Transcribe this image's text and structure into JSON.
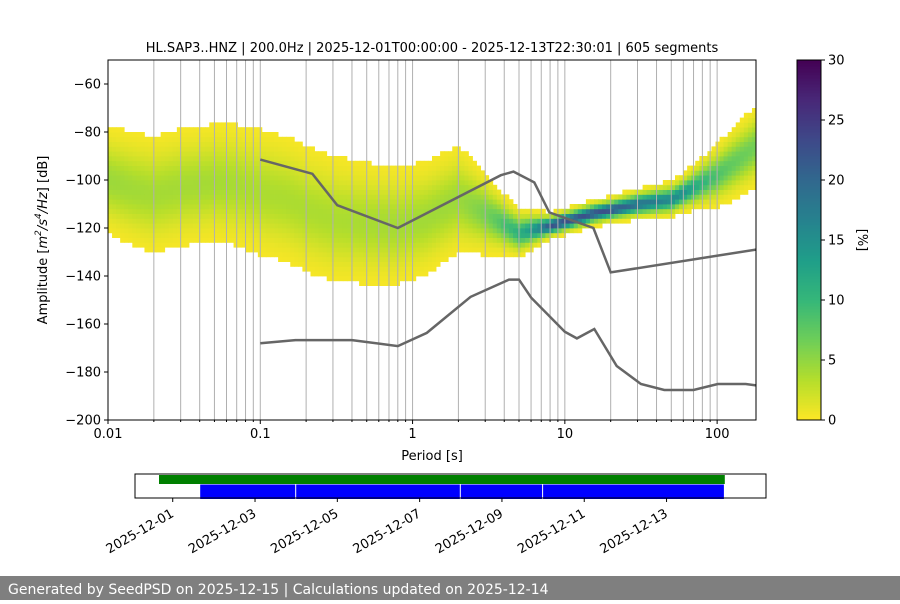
{
  "chart_data": [
    {
      "type": "heatmap",
      "title": "HL.SAP3..HNZ | 200.0Hz | 2025-12-01T00:00:00 - 2025-12-13T22:30:01 | 605 segments",
      "xlabel": "Period [s]",
      "ylabel_parts": [
        "Amplitude [",
        "m",
        "2",
        "/",
        "s",
        "4",
        "/",
        "Hz",
        "] [dB]"
      ],
      "xscale": "log",
      "xlim": [
        0.01,
        180
      ],
      "ylim": [
        -200,
        -50
      ],
      "x_ticks": [
        0.01,
        0.1,
        1,
        10,
        100
      ],
      "x_tick_labels": [
        "0.01",
        "0.1",
        "1",
        "10",
        "100"
      ],
      "y_ticks": [
        -200,
        -180,
        -160,
        -140,
        -120,
        -100,
        -80,
        -60
      ],
      "y_tick_labels": [
        "−200",
        "−180",
        "−160",
        "−140",
        "−120",
        "−100",
        "−80",
        "−60"
      ],
      "grid": "vertical log minor lines",
      "colormap": "viridis_r",
      "colorbar": {
        "label": "[%]",
        "range": [
          0,
          30
        ],
        "ticks": [
          0,
          5,
          10,
          15,
          20,
          25,
          30
        ],
        "tick_labels": [
          "0",
          "5",
          "10",
          "15",
          "20",
          "25",
          "30"
        ],
        "colors": [
          "#fde725",
          "#b5de2b",
          "#6ece58",
          "#35b779",
          "#1f9e89",
          "#26828e",
          "#31688e",
          "#3e4989",
          "#482878",
          "#440154"
        ]
      },
      "psd_median": [
        {
          "period": 0.01,
          "db": -100
        },
        {
          "period": 0.015,
          "db": -104
        },
        {
          "period": 0.02,
          "db": -106
        },
        {
          "period": 0.03,
          "db": -103
        },
        {
          "period": 0.05,
          "db": -101
        },
        {
          "period": 0.07,
          "db": -102
        },
        {
          "period": 0.1,
          "db": -105
        },
        {
          "period": 0.15,
          "db": -108
        },
        {
          "period": 0.2,
          "db": -112
        },
        {
          "period": 0.3,
          "db": -116
        },
        {
          "period": 0.5,
          "db": -118
        },
        {
          "period": 0.8,
          "db": -119
        },
        {
          "period": 1.2,
          "db": -116
        },
        {
          "period": 2,
          "db": -108
        },
        {
          "period": 3,
          "db": -114
        },
        {
          "period": 5,
          "db": -122
        },
        {
          "period": 8,
          "db": -119
        },
        {
          "period": 15,
          "db": -114
        },
        {
          "period": 30,
          "db": -110
        },
        {
          "period": 50,
          "db": -108
        },
        {
          "period": 100,
          "db": -98
        },
        {
          "period": 180,
          "db": -86
        }
      ],
      "psd_spread_db": [
        {
          "period": 0.01,
          "spread": 10
        },
        {
          "period": 0.02,
          "spread": 11
        },
        {
          "period": 0.05,
          "spread": 11
        },
        {
          "period": 0.1,
          "spread": 12
        },
        {
          "period": 0.3,
          "spread": 12
        },
        {
          "period": 0.8,
          "spread": 11
        },
        {
          "period": 2,
          "spread": 10
        },
        {
          "period": 4,
          "spread": 5
        },
        {
          "period": 8,
          "spread": 2
        },
        {
          "period": 20,
          "spread": 2
        },
        {
          "period": 60,
          "spread": 3
        },
        {
          "period": 120,
          "spread": 6
        },
        {
          "period": 180,
          "spread": 7
        }
      ],
      "series": [
        {
          "points": [
            {
              "period": 0.1,
              "db": -91.5
            },
            {
              "period": 0.22,
              "db": -97.4
            },
            {
              "period": 0.32,
              "db": -110.5
            },
            {
              "period": 0.8,
              "db": -120.0
            },
            {
              "period": 3.8,
              "db": -98.0
            },
            {
              "period": 4.6,
              "db": -96.5
            },
            {
              "period": 6.3,
              "db": -101.0
            },
            {
              "period": 7.9,
              "db": -113.5
            },
            {
              "period": 15.4,
              "db": -120.0
            },
            {
              "period": 20,
              "db": -138.5
            },
            {
              "period": 180,
              "db": -129.0
            }
          ]
        },
        {
          "points": [
            {
              "period": 0.1,
              "db": -168.0
            },
            {
              "period": 0.17,
              "db": -166.7
            },
            {
              "period": 0.4,
              "db": -166.7
            },
            {
              "period": 0.8,
              "db": -169.2
            },
            {
              "period": 1.24,
              "db": -163.7
            },
            {
              "period": 2.4,
              "db": -148.7
            },
            {
              "period": 4.3,
              "db": -141.5
            },
            {
              "period": 5.0,
              "db": -141.5
            },
            {
              "period": 6.0,
              "db": -149.0
            },
            {
              "period": 10.0,
              "db": -163.2
            },
            {
              "period": 12.0,
              "db": -166.0
            },
            {
              "period": 15.6,
              "db": -162.1
            },
            {
              "period": 21.9,
              "db": -177.5
            },
            {
              "period": 31.6,
              "db": -185.0
            },
            {
              "period": 45.0,
              "db": -187.5
            },
            {
              "period": 70.0,
              "db": -187.5
            },
            {
              "period": 101.0,
              "db": -185.0
            },
            {
              "period": 154.0,
              "db": -185.0
            },
            {
              "period": 180.0,
              "db": -185.6
            }
          ]
        }
      ]
    },
    {
      "type": "timeline",
      "x_tick_labels": [
        "2025-12-01",
        "2025-12-03",
        "2025-12-05",
        "2025-12-07",
        "2025-12-09",
        "2025-12-11",
        "2025-12-13"
      ],
      "x_tick_dates": [
        "2025-12-01",
        "2025-12-03",
        "2025-12-05",
        "2025-12-07",
        "2025-12-09",
        "2025-12-11",
        "2025-12-13"
      ],
      "xlim": [
        "2025-11-30T02:00",
        "2025-12-15T10:00"
      ],
      "rows": [
        {
          "color": "#008000",
          "intervals": [
            [
              "2025-11-30T16:00",
              "2025-12-14T10:00"
            ]
          ]
        },
        {
          "color": "#0000ff",
          "intervals": [
            [
              "2025-12-01T16:00",
              "2025-12-04T00:00"
            ],
            [
              "2025-12-04T00:00",
              "2025-12-08T00:00"
            ],
            [
              "2025-12-08T00:00",
              "2025-12-10T00:00"
            ],
            [
              "2025-12-10T00:00",
              "2025-12-14T10:00"
            ]
          ]
        }
      ]
    }
  ],
  "footer": {
    "text": "Generated by SeedPSD on 2025-12-15 | Calculations updated on 2025-12-14"
  }
}
